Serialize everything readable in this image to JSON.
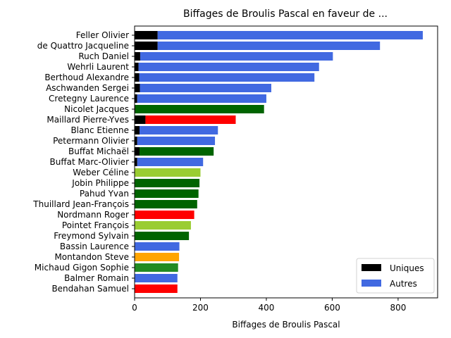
{
  "chart_data": {
    "type": "bar",
    "orientation": "horizontal",
    "stacked": true,
    "title": "Biffages de Broulis Pascal en faveur de ...",
    "xlabel": "Biffages de Broulis Pascal",
    "ylabel": "",
    "xlim": [
      0,
      920
    ],
    "xticks": [
      "0",
      "200",
      "400",
      "600",
      "800"
    ],
    "grid": false,
    "legend_position": "bottom-right",
    "categories": [
      "Feller Olivier",
      "de Quattro Jacqueline",
      "Ruch Daniel",
      "Wehrli Laurent",
      "Berthoud Alexandre",
      "Aschwanden Sergei",
      "Cretegny Laurence",
      "Nicolet Jacques",
      "Maillard Pierre-Yves",
      "Blanc Etienne",
      "Petermann Olivier",
      "Buffat Michaël",
      "Buffat Marc-Olivier",
      "Weber Céline",
      "Jobin Philippe",
      "Pahud Yvan",
      "Thuillard Jean-François",
      "Nordmann Roger",
      "Pointet François",
      "Freymond Sylvain",
      "Bassin Laurence",
      "Montandon Steve",
      "Michaud Gigon Sophie",
      "Balmer Romain",
      "Bendahan Samuel"
    ],
    "series": [
      {
        "name": "Uniques",
        "color": "#000000",
        "values": [
          70,
          70,
          17,
          12,
          14,
          16,
          8,
          2,
          33,
          15,
          8,
          15,
          8,
          1,
          1,
          1,
          1,
          1,
          1,
          1,
          1,
          1,
          1,
          1,
          1
        ]
      },
      {
        "name": "Autres",
        "color": "#4169e1",
        "values": [
          805,
          675,
          585,
          548,
          532,
          399,
          392,
          391,
          274,
          238,
          236,
          225,
          200,
          199,
          196,
          193,
          189,
          180,
          170,
          164,
          135,
          134,
          131,
          129,
          129
        ]
      }
    ],
    "bar_colors_autres": [
      "#4169e1",
      "#4169e1",
      "#4169e1",
      "#4169e1",
      "#4169e1",
      "#4169e1",
      "#4169e1",
      "#006400",
      "#ff0000",
      "#4169e1",
      "#4169e1",
      "#006400",
      "#4169e1",
      "#9acd32",
      "#006400",
      "#006400",
      "#006400",
      "#ff0000",
      "#9acd32",
      "#006400",
      "#4169e1",
      "#ffa500",
      "#228b22",
      "#4169e1",
      "#ff0000"
    ]
  }
}
